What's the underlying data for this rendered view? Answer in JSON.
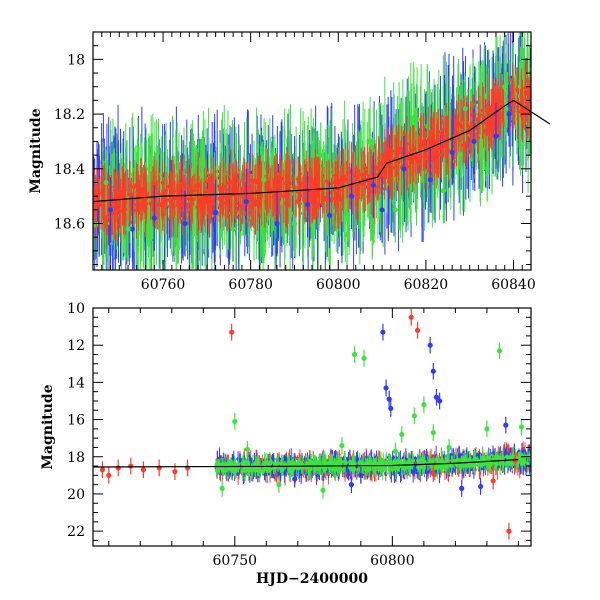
{
  "chart_data": [
    {
      "type": "scatter",
      "panel": "top",
      "xlabel": "",
      "ylabel": "Magnitude",
      "xlim": [
        60744,
        60844
      ],
      "ylim": [
        18.77,
        17.9
      ],
      "y_inverted": true,
      "xticks": [
        60760,
        60780,
        60800,
        60820,
        60840
      ],
      "yticks": [
        18,
        18.2,
        18.4,
        18.6
      ],
      "xtick_labels": [
        "60760",
        "60780",
        "60800",
        "60820",
        "60840"
      ],
      "ytick_labels": [
        "18",
        "18.2",
        "18.4",
        "18.6"
      ],
      "grid": false,
      "legend": "none",
      "trend": {
        "description": "dense light curve with error bars; quiescent near 18.5, brightening to ~18.15 after 60811",
        "x": [
          60744,
          60760,
          60780,
          60800,
          60809,
          60811,
          60820,
          60830,
          60838,
          60840
        ],
        "y": [
          18.52,
          18.5,
          18.49,
          18.47,
          18.43,
          18.38,
          18.33,
          18.26,
          18.17,
          18.15
        ]
      },
      "series": [
        {
          "name": "",
          "color": "#2f3cff",
          "x": [
            60748,
            60753,
            60758,
            60765,
            60772,
            60779,
            60786,
            60793,
            60798,
            60803,
            60808,
            60810,
            60815,
            60821,
            60826,
            60831,
            60836,
            60839
          ],
          "y": [
            18.55,
            18.62,
            18.58,
            18.6,
            18.56,
            18.52,
            18.6,
            18.53,
            18.57,
            18.5,
            18.46,
            18.55,
            18.4,
            18.44,
            18.34,
            18.3,
            18.28,
            18.2
          ]
        },
        {
          "name": "",
          "color": "#3ee23e",
          "x": [
            60747,
            60752,
            60757,
            60763,
            60769,
            60776,
            60783,
            60790,
            60796,
            60802,
            60807,
            60813,
            60818,
            60824,
            60829,
            60834,
            60838
          ],
          "y": [
            18.45,
            18.62,
            18.4,
            18.66,
            18.38,
            18.62,
            18.44,
            18.6,
            18.35,
            18.64,
            18.3,
            18.55,
            18.22,
            18.48,
            18.18,
            18.4,
            18.1
          ]
        },
        {
          "name": "",
          "color": "#ff3c28",
          "x": [
            60749,
            60755,
            60762,
            60768,
            60775,
            60781,
            60788,
            60794,
            60800,
            60806,
            60812,
            60817,
            60822,
            60827,
            60832,
            60837
          ],
          "y": [
            18.52,
            18.48,
            18.53,
            18.46,
            18.5,
            18.52,
            18.49,
            18.48,
            18.5,
            18.44,
            18.38,
            18.36,
            18.3,
            18.27,
            18.22,
            18.17
          ]
        }
      ]
    },
    {
      "type": "scatter",
      "panel": "bottom",
      "xlabel": "HJD−2400000",
      "ylabel": "Magnitude",
      "xlim": [
        60705,
        60844
      ],
      "ylim": [
        22.8,
        10
      ],
      "y_inverted": true,
      "xticks": [
        60750,
        60800
      ],
      "yticks": [
        10,
        12,
        14,
        16,
        18,
        20,
        22
      ],
      "xtick_labels": [
        "60750",
        "60800"
      ],
      "ytick_labels": [
        "10",
        "12",
        "14",
        "16",
        "18",
        "20",
        "22"
      ],
      "grid": false,
      "legend": "none",
      "trend": {
        "x": [
          60705,
          60760,
          60800,
          60820,
          60840
        ],
        "y": [
          18.55,
          18.52,
          18.47,
          18.35,
          18.15
        ]
      },
      "series": [
        {
          "name": "",
          "color": "#ff3c28",
          "x": [
            60708,
            60710,
            60713,
            60717,
            60721,
            60726,
            60731,
            60735,
            60749,
            60806,
            60808,
            60813,
            60832,
            60837,
            60839
          ],
          "y": [
            18.7,
            19.0,
            18.6,
            18.5,
            18.7,
            18.6,
            18.8,
            18.6,
            11.3,
            10.5,
            11.2,
            18.9,
            19.3,
            22.0,
            18.2
          ]
        },
        {
          "name": "",
          "color": "#2f3cff",
          "x": [
            60797,
            60798,
            60799,
            60799.5,
            60812,
            60813,
            60814,
            60815,
            60828,
            60836,
            60769,
            60787,
            60790,
            60822
          ],
          "y": [
            11.3,
            14.3,
            14.9,
            15.4,
            12.0,
            13.4,
            14.8,
            15.0,
            19.6,
            16.3,
            19.2,
            19.5,
            19.0,
            19.7
          ]
        },
        {
          "name": "",
          "color": "#3ee23e",
          "x": [
            60746,
            60750,
            60754,
            60764,
            60778,
            60784,
            60788,
            60791,
            60801,
            60803,
            60807,
            60810,
            60813,
            60818,
            60830,
            60834,
            60841
          ],
          "y": [
            19.7,
            16.1,
            17.6,
            19.5,
            19.8,
            17.4,
            12.5,
            12.7,
            17.7,
            16.8,
            15.8,
            15.2,
            16.7,
            17.5,
            16.5,
            12.3,
            16.4
          ]
        }
      ]
    }
  ]
}
